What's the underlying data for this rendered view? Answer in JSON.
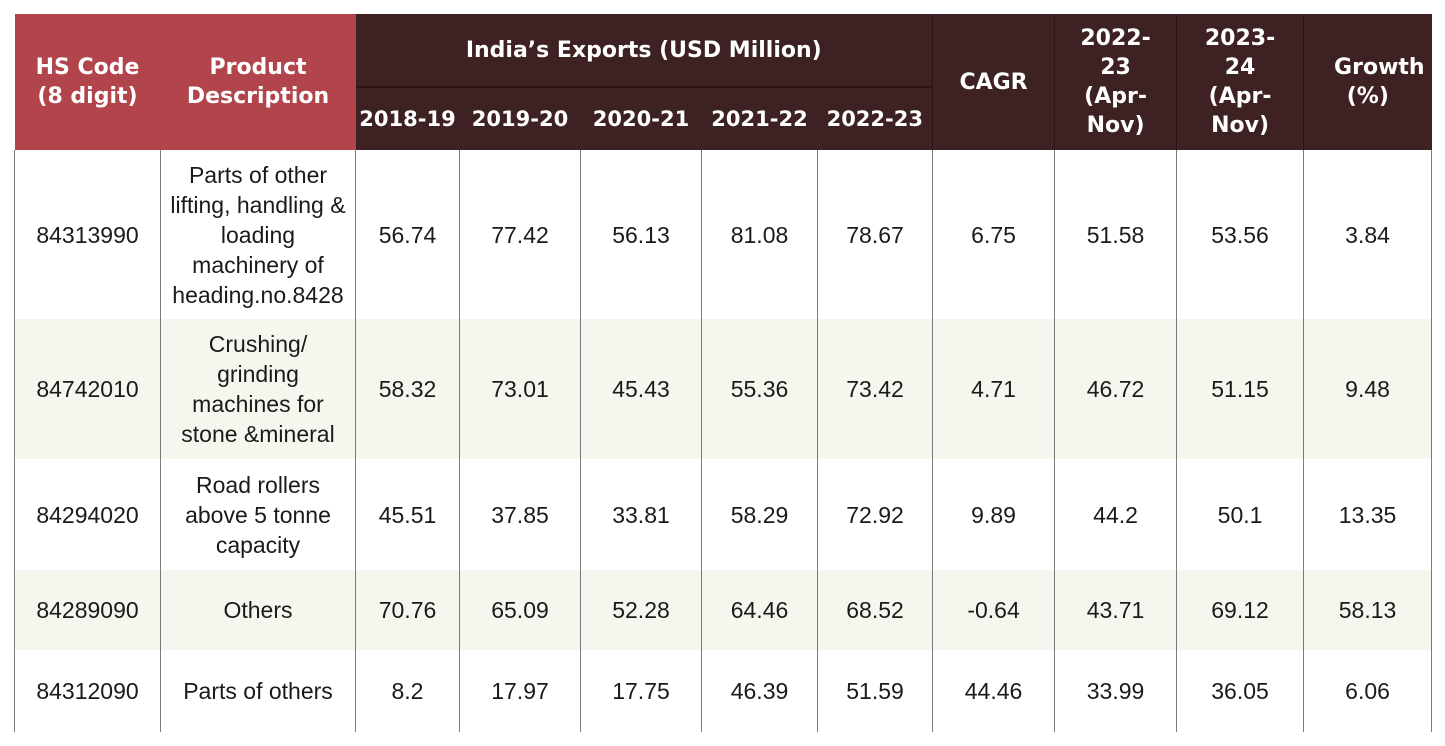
{
  "headers": {
    "hs_code": "HS Code (8 digit)",
    "product": "Product Description",
    "exports_group": "India’s Exports (USD Million)",
    "years": [
      "2018-19",
      "2019-20",
      "2020-21",
      "2021-22",
      "2022-23"
    ],
    "cagr": "CAGR",
    "apr_nov_2223": "2022-23 (Apr-Nov)",
    "apr_nov_2324": "2023-24 (Apr-Nov)",
    "growth": "Growth (%)"
  },
  "rows": [
    {
      "hs": "84313990",
      "desc": "Parts of other lifting, handling & loading machinery of heading.no.8428",
      "v": [
        "56.74",
        "77.42",
        "56.13",
        "81.08",
        "78.67"
      ],
      "cagr": "6.75",
      "a": "51.58",
      "b": "53.56",
      "g": "3.84"
    },
    {
      "hs": "84742010",
      "desc": "Crushing/ grinding machines for stone &mineral",
      "v": [
        "58.32",
        "73.01",
        "45.43",
        "55.36",
        "73.42"
      ],
      "cagr": "4.71",
      "a": "46.72",
      "b": "51.15",
      "g": "9.48"
    },
    {
      "hs": "84294020",
      "desc": "Road rollers above 5 tonne capacity",
      "v": [
        "45.51",
        "37.85",
        "33.81",
        "58.29",
        "72.92"
      ],
      "cagr": "9.89",
      "a": "44.2",
      "b": "50.1",
      "g": "13.35"
    },
    {
      "hs": "84289090",
      "desc": "Others",
      "v": [
        "70.76",
        "65.09",
        "52.28",
        "64.46",
        "68.52"
      ],
      "cagr": "-0.64",
      "a": "43.71",
      "b": "69.12",
      "g": "58.13"
    },
    {
      "hs": "84312090",
      "desc": "Parts of others",
      "v": [
        "8.2",
        "17.97",
        "17.75",
        "46.39",
        "51.59"
      ],
      "cagr": "44.46",
      "a": "33.99",
      "b": "36.05",
      "g": "6.06"
    }
  ]
}
